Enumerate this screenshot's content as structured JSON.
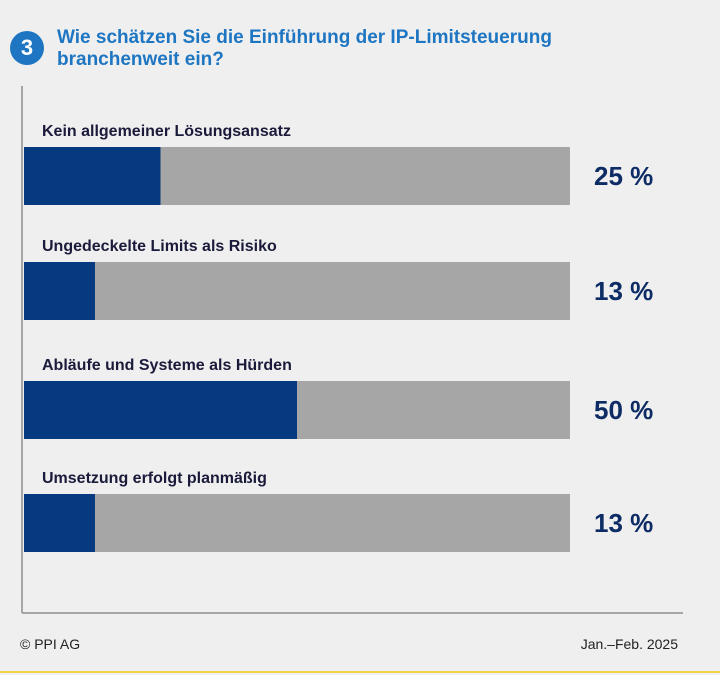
{
  "badge": "3",
  "title": "Wie schätzen Sie die Einführung der IP-Limitsteuerung branchenweit ein?",
  "footer": {
    "source": "© PPI AG",
    "period": "Jan.–Feb. 2025"
  },
  "colors": {
    "accent": "#1e76c2",
    "bar_fill": "#063a80",
    "bar_track": "#a6a6a6",
    "value": "#0d2b64",
    "footer_rule": "#f2d245"
  },
  "chart_data": {
    "type": "bar",
    "orientation": "horizontal",
    "title": "Wie schätzen Sie die Einführung der IP-Limitsteuerung branchenweit ein?",
    "categories": [
      "Kein allgemeiner Lösungsansatz",
      "Ungedeckelte Limits als Risiko",
      "Abläufe und Systeme als Hürden",
      "Umsetzung erfolgt planmäßig"
    ],
    "values": [
      25,
      13,
      50,
      13
    ],
    "value_labels": [
      "25 %",
      "13 %",
      "50 %",
      "13 %"
    ],
    "unit": "%",
    "xlim": [
      0,
      100
    ],
    "grid": false,
    "legend": "none"
  }
}
